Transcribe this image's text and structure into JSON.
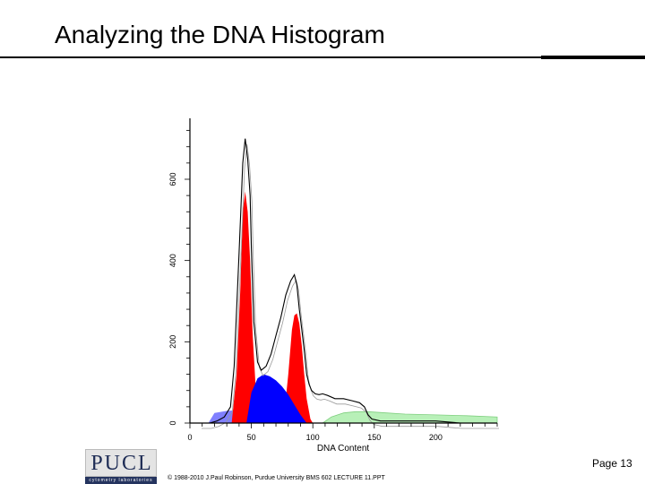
{
  "slide": {
    "title": "Analyzing the DNA Histogram",
    "page": "Page 13",
    "copyright": "© 1988-2010 J.Paul Robinson, Purdue University BMS 602 LECTURE 11.PPT"
  },
  "logo": {
    "text": "PUCL",
    "subtext": "cytometry laboratories"
  },
  "colors": {
    "g1_peak": "#ff0000",
    "g2m_peak": "#ff0000",
    "s_phase": "#0000ff",
    "debris": "#8080ff",
    "aggregates": "#b8f0b8",
    "histogram": "#000000"
  },
  "chart_data": {
    "type": "area",
    "xlabel": "DNA Content",
    "ylabel": "",
    "xlim": [
      0,
      250
    ],
    "ylim": [
      0,
      750
    ],
    "x_ticks": [
      0,
      50,
      100,
      150,
      200
    ],
    "y_ticks": [
      0,
      200,
      400,
      600
    ],
    "series": [
      {
        "x": [
          8,
          16,
          22,
          28,
          33,
          36,
          40,
          43,
          45,
          47,
          49,
          50,
          52,
          55,
          58,
          62,
          66,
          70,
          74,
          78,
          82,
          85,
          87,
          89,
          91,
          93,
          95,
          97,
          99,
          102,
          105,
          108,
          112,
          118,
          125,
          132,
          138,
          142,
          145,
          148,
          155,
          165,
          180,
          200,
          220,
          250
        ],
        "y": [
          0,
          0,
          5,
          15,
          40,
          140,
          420,
          640,
          700,
          650,
          560,
          430,
          250,
          150,
          130,
          140,
          170,
          215,
          260,
          315,
          350,
          365,
          340,
          280,
          230,
          180,
          120,
          95,
          80,
          72,
          70,
          72,
          68,
          60,
          60,
          55,
          50,
          40,
          20,
          10,
          5,
          5,
          5,
          5,
          0,
          0
        ]
      },
      {
        "x": [
          34,
          38,
          41,
          43,
          45,
          47,
          49,
          51,
          54,
          56
        ],
        "y": [
          0,
          120,
          330,
          520,
          570,
          520,
          400,
          220,
          60,
          0
        ]
      },
      {
        "x": [
          76,
          80,
          83,
          85,
          87,
          89,
          91,
          93,
          95,
          98,
          100
        ],
        "y": [
          0,
          120,
          230,
          265,
          270,
          245,
          190,
          120,
          60,
          10,
          0
        ]
      },
      {
        "x": [
          46,
          50,
          55,
          60,
          65,
          70,
          75,
          80,
          85,
          90,
          95
        ],
        "y": [
          0,
          75,
          110,
          120,
          115,
          105,
          90,
          70,
          45,
          20,
          0
        ]
      },
      {
        "x": [
          15,
          20,
          30,
          40,
          50,
          60,
          70,
          80,
          90,
          98
        ],
        "y": [
          0,
          25,
          30,
          32,
          30,
          25,
          18,
          10,
          5,
          0
        ]
      },
      {
        "x": [
          108,
          115,
          125,
          135,
          145,
          160,
          175,
          200,
          225,
          250
        ],
        "y": [
          0,
          15,
          25,
          28,
          28,
          25,
          22,
          20,
          18,
          15
        ]
      }
    ]
  }
}
